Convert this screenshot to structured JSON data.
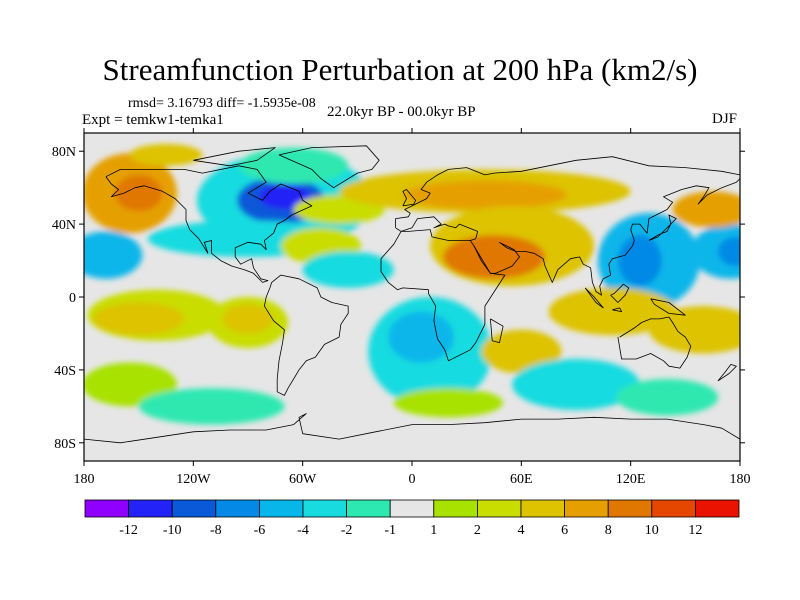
{
  "title": "Streamfunction Perturbation at 200 hPa (km2/s)",
  "stats_line": "rmsd= 3.16793 diff= -1.5935e-08",
  "experiment_label": "Expt = temkw1-temka1",
  "period_label": "22.0kyr BP - 00.0kyr BP",
  "season_label": "DJF",
  "axes": {
    "lat_ticks": [
      {
        "value": 80,
        "label": "80N"
      },
      {
        "value": 40,
        "label": "40N"
      },
      {
        "value": 0,
        "label": "0"
      },
      {
        "value": -40,
        "label": "40S"
      },
      {
        "value": -80,
        "label": "80S"
      }
    ],
    "lon_ticks": [
      {
        "value": -180,
        "label": "180"
      },
      {
        "value": -120,
        "label": "120W"
      },
      {
        "value": -60,
        "label": "60W"
      },
      {
        "value": 0,
        "label": "0"
      },
      {
        "value": 60,
        "label": "60E"
      },
      {
        "value": 120,
        "label": "120E"
      },
      {
        "value": 180,
        "label": "180"
      }
    ],
    "lat_range": [
      -90,
      90
    ],
    "lon_range": [
      -180,
      180
    ]
  },
  "colorbar": {
    "colors": [
      "#8f00ff",
      "#2323f7",
      "#0a59d9",
      "#0589e6",
      "#09b6ea",
      "#18dbe0",
      "#2de8b0",
      "#e6e6e6",
      "#a8e200",
      "#c9dd00",
      "#ddc300",
      "#e5a000",
      "#e07700",
      "#e54700",
      "#ea1200"
    ],
    "labels": [
      "-12",
      "-10",
      "-8",
      "-6",
      "-4",
      "-2",
      "-1",
      "1",
      "2",
      "4",
      "6",
      "8",
      "10",
      "12"
    ]
  },
  "field_blobs": [
    {
      "lon": -155,
      "lat": 57,
      "rlon": 26,
      "rlat": 22,
      "c": 11
    },
    {
      "lon": -150,
      "lat": 57,
      "rlon": 13,
      "rlat": 10,
      "c": 12
    },
    {
      "lon": -70,
      "lat": 53,
      "rlon": 48,
      "rlat": 26,
      "c": 5
    },
    {
      "lon": -72,
      "lat": 53,
      "rlon": 24,
      "rlat": 13,
      "c": 2
    },
    {
      "lon": -70,
      "lat": 55,
      "rlon": 14,
      "rlat": 7,
      "c": 1
    },
    {
      "lon": -168,
      "lat": 23,
      "rlon": 20,
      "rlat": 13,
      "c": 4
    },
    {
      "lon": -90,
      "lat": 32,
      "rlon": 55,
      "rlat": 10,
      "c": 5
    },
    {
      "lon": -50,
      "lat": 28,
      "rlon": 22,
      "rlat": 10,
      "c": 9
    },
    {
      "lon": -40,
      "lat": 48,
      "rlon": 25,
      "rlat": 8,
      "c": 9
    },
    {
      "lon": -140,
      "lat": -10,
      "rlon": 38,
      "rlat": 14,
      "c": 9
    },
    {
      "lon": -150,
      "lat": -12,
      "rlon": 25,
      "rlat": 9,
      "c": 10
    },
    {
      "lon": -90,
      "lat": -14,
      "rlon": 22,
      "rlat": 14,
      "c": 9
    },
    {
      "lon": -90,
      "lat": -12,
      "rlon": 14,
      "rlat": 8,
      "c": 10
    },
    {
      "lon": 10,
      "lat": -30,
      "rlon": 34,
      "rlat": 30,
      "c": 5
    },
    {
      "lon": 5,
      "lat": -22,
      "rlon": 18,
      "rlat": 14,
      "c": 4
    },
    {
      "lon": -35,
      "lat": 15,
      "rlon": 25,
      "rlat": 10,
      "c": 5
    },
    {
      "lon": 40,
      "lat": 58,
      "rlon": 80,
      "rlat": 12,
      "c": 10
    },
    {
      "lon": 40,
      "lat": 56,
      "rlon": 45,
      "rlat": 8,
      "c": 11
    },
    {
      "lon": 55,
      "lat": 28,
      "rlon": 45,
      "rlat": 22,
      "c": 10
    },
    {
      "lon": 45,
      "lat": 22,
      "rlon": 28,
      "rlat": 12,
      "c": 12
    },
    {
      "lon": 130,
      "lat": 20,
      "rlon": 28,
      "rlat": 26,
      "c": 4
    },
    {
      "lon": 125,
      "lat": 20,
      "rlon": 12,
      "rlat": 14,
      "c": 3
    },
    {
      "lon": 175,
      "lat": 25,
      "rlon": 22,
      "rlat": 15,
      "c": 4
    },
    {
      "lon": 178,
      "lat": 25,
      "rlon": 10,
      "rlat": 8,
      "c": 3
    },
    {
      "lon": 165,
      "lat": 48,
      "rlon": 22,
      "rlat": 10,
      "c": 11
    },
    {
      "lon": 110,
      "lat": -8,
      "rlon": 35,
      "rlat": 13,
      "c": 10
    },
    {
      "lon": 160,
      "lat": -18,
      "rlon": 30,
      "rlat": 13,
      "c": 10
    },
    {
      "lon": 60,
      "lat": -30,
      "rlon": 22,
      "rlat": 12,
      "c": 10
    },
    {
      "lon": 90,
      "lat": -48,
      "rlon": 35,
      "rlat": 14,
      "c": 5
    },
    {
      "lon": -155,
      "lat": -48,
      "rlon": 26,
      "rlat": 12,
      "c": 8
    },
    {
      "lon": -110,
      "lat": -60,
      "rlon": 40,
      "rlat": 10,
      "c": 6
    },
    {
      "lon": 140,
      "lat": -55,
      "rlon": 28,
      "rlat": 10,
      "c": 6
    },
    {
      "lon": 20,
      "lat": -58,
      "rlon": 30,
      "rlat": 8,
      "c": 8
    },
    {
      "lon": -65,
      "lat": 72,
      "rlon": 30,
      "rlat": 10,
      "c": 6
    },
    {
      "lon": -135,
      "lat": 78,
      "rlon": 20,
      "rlat": 6,
      "c": 10
    }
  ],
  "coastlines": [
    [
      [
        -168,
        66
      ],
      [
        -160,
        70
      ],
      [
        -140,
        70
      ],
      [
        -125,
        70
      ],
      [
        -115,
        68
      ],
      [
        -95,
        72
      ],
      [
        -85,
        70
      ],
      [
        -80,
        63
      ],
      [
        -90,
        57
      ],
      [
        -82,
        53
      ],
      [
        -78,
        58
      ],
      [
        -72,
        62
      ],
      [
        -62,
        58
      ],
      [
        -60,
        53
      ],
      [
        -55,
        50
      ],
      [
        -66,
        45
      ],
      [
        -70,
        42
      ],
      [
        -74,
        40
      ],
      [
        -76,
        35
      ],
      [
        -81,
        31
      ],
      [
        -80,
        26
      ],
      [
        -83,
        29
      ],
      [
        -90,
        30
      ],
      [
        -97,
        27
      ],
      [
        -97,
        22
      ],
      [
        -94,
        18
      ],
      [
        -88,
        21
      ],
      [
        -87,
        16
      ],
      [
        -83,
        10
      ],
      [
        -79,
        9
      ],
      [
        -82,
        8
      ],
      [
        -87,
        13
      ],
      [
        -92,
        15
      ],
      [
        -99,
        17
      ],
      [
        -105,
        20
      ],
      [
        -110,
        24
      ],
      [
        -110,
        31
      ],
      [
        -114,
        30
      ],
      [
        -112,
        24
      ],
      [
        -117,
        32
      ],
      [
        -122,
        37
      ],
      [
        -124,
        42
      ],
      [
        -124,
        48
      ],
      [
        -130,
        54
      ],
      [
        -137,
        58
      ],
      [
        -147,
        61
      ],
      [
        -152,
        60
      ],
      [
        -158,
        57
      ],
      [
        -165,
        55
      ],
      [
        -161,
        59
      ],
      [
        -165,
        62
      ],
      [
        -168,
        66
      ]
    ],
    [
      [
        -77,
        8
      ],
      [
        -72,
        12
      ],
      [
        -62,
        10
      ],
      [
        -52,
        5
      ],
      [
        -50,
        0
      ],
      [
        -44,
        -3
      ],
      [
        -35,
        -5
      ],
      [
        -35,
        -9
      ],
      [
        -39,
        -15
      ],
      [
        -40,
        -22
      ],
      [
        -48,
        -26
      ],
      [
        -53,
        -33
      ],
      [
        -58,
        -35
      ],
      [
        -62,
        -40
      ],
      [
        -65,
        -45
      ],
      [
        -68,
        -50
      ],
      [
        -70,
        -54
      ],
      [
        -74,
        -52
      ],
      [
        -74,
        -45
      ],
      [
        -73,
        -35
      ],
      [
        -71,
        -25
      ],
      [
        -70,
        -18
      ],
      [
        -76,
        -13
      ],
      [
        -81,
        -5
      ],
      [
        -80,
        0
      ],
      [
        -78,
        5
      ],
      [
        -77,
        8
      ]
    ],
    [
      [
        -73,
        78
      ],
      [
        -55,
        82
      ],
      [
        -25,
        83
      ],
      [
        -18,
        75
      ],
      [
        -22,
        70
      ],
      [
        -30,
        68
      ],
      [
        -43,
        60
      ],
      [
        -50,
        65
      ],
      [
        -55,
        70
      ],
      [
        -73,
        78
      ]
    ],
    [
      [
        -17,
        21
      ],
      [
        -10,
        29
      ],
      [
        -6,
        36
      ],
      [
        -2,
        36
      ],
      [
        10,
        37
      ],
      [
        11,
        33
      ],
      [
        20,
        31
      ],
      [
        32,
        31
      ],
      [
        34,
        28
      ],
      [
        43,
        13
      ],
      [
        51,
        12
      ],
      [
        40,
        -5
      ],
      [
        40,
        -15
      ],
      [
        35,
        -25
      ],
      [
        32,
        -29
      ],
      [
        20,
        -35
      ],
      [
        18,
        -29
      ],
      [
        14,
        -23
      ],
      [
        12,
        -13
      ],
      [
        13,
        -5
      ],
      [
        9,
        2
      ],
      [
        9,
        4
      ],
      [
        -5,
        5
      ],
      [
        -8,
        4
      ],
      [
        -13,
        8
      ],
      [
        -17,
        14
      ],
      [
        -17,
        21
      ]
    ],
    [
      [
        -9,
        38
      ],
      [
        -9,
        43
      ],
      [
        -2,
        44
      ],
      [
        -1,
        46
      ],
      [
        -4,
        48
      ],
      [
        2,
        51
      ],
      [
        8,
        54
      ],
      [
        10,
        57
      ],
      [
        5,
        59
      ],
      [
        8,
        63
      ],
      [
        14,
        67
      ],
      [
        20,
        70
      ],
      [
        30,
        71
      ],
      [
        40,
        67
      ],
      [
        45,
        68
      ],
      [
        60,
        69
      ],
      [
        75,
        72
      ],
      [
        90,
        75
      ],
      [
        110,
        77
      ],
      [
        130,
        72
      ],
      [
        150,
        71
      ],
      [
        170,
        69
      ],
      [
        180,
        67
      ]
    ],
    [
      [
        -9,
        38
      ],
      [
        -6,
        36
      ],
      [
        0,
        38
      ],
      [
        3,
        43
      ],
      [
        12,
        44
      ],
      [
        16,
        40
      ],
      [
        12,
        38
      ],
      [
        18,
        40
      ],
      [
        20,
        39
      ],
      [
        24,
        38
      ],
      [
        26,
        40
      ],
      [
        36,
        36
      ],
      [
        35,
        32
      ],
      [
        32,
        31
      ]
    ],
    [
      [
        34,
        28
      ],
      [
        38,
        20
      ],
      [
        43,
        13
      ],
      [
        46,
        13
      ],
      [
        55,
        17
      ],
      [
        59,
        22
      ],
      [
        56,
        26
      ],
      [
        50,
        29
      ],
      [
        48,
        30
      ],
      [
        52,
        27
      ],
      [
        57,
        25
      ],
      [
        62,
        25
      ],
      [
        67,
        24
      ],
      [
        72,
        21
      ],
      [
        73,
        17
      ],
      [
        77,
        8
      ],
      [
        80,
        15
      ],
      [
        87,
        21
      ],
      [
        92,
        22
      ],
      [
        94,
        18
      ],
      [
        98,
        16
      ],
      [
        99,
        8
      ],
      [
        101,
        3
      ],
      [
        104,
        1
      ],
      [
        103,
        6
      ],
      [
        105,
        10
      ],
      [
        109,
        12
      ],
      [
        108,
        18
      ],
      [
        110,
        21
      ],
      [
        117,
        23
      ],
      [
        121,
        28
      ],
      [
        122,
        31
      ],
      [
        120,
        37
      ],
      [
        121,
        40
      ],
      [
        125,
        40
      ],
      [
        129,
        35
      ],
      [
        130,
        43
      ],
      [
        140,
        48
      ],
      [
        143,
        52
      ],
      [
        138,
        55
      ],
      [
        148,
        59
      ],
      [
        156,
        61
      ],
      [
        163,
        60
      ],
      [
        160,
        55
      ],
      [
        157,
        51
      ],
      [
        162,
        56
      ],
      [
        170,
        60
      ],
      [
        178,
        63
      ],
      [
        180,
        65
      ]
    ],
    [
      [
        113,
        -22
      ],
      [
        115,
        -34
      ],
      [
        123,
        -34
      ],
      [
        131,
        -31
      ],
      [
        138,
        -35
      ],
      [
        141,
        -38
      ],
      [
        147,
        -39
      ],
      [
        151,
        -33
      ],
      [
        153,
        -27
      ],
      [
        150,
        -22
      ],
      [
        146,
        -19
      ],
      [
        143,
        -14
      ],
      [
        141,
        -11
      ],
      [
        136,
        -12
      ],
      [
        131,
        -12
      ],
      [
        126,
        -14
      ],
      [
        122,
        -17
      ],
      [
        114,
        -22
      ]
    ],
    [
      [
        -180,
        -78
      ],
      [
        -160,
        -80
      ],
      [
        -140,
        -77
      ],
      [
        -120,
        -74
      ],
      [
        -100,
        -73
      ],
      [
        -80,
        -73
      ],
      [
        -65,
        -70
      ],
      [
        -58,
        -64
      ],
      [
        -62,
        -66
      ],
      [
        -60,
        -75
      ],
      [
        -40,
        -78
      ],
      [
        -20,
        -74
      ],
      [
        0,
        -70
      ],
      [
        20,
        -70
      ],
      [
        40,
        -69
      ],
      [
        60,
        -67
      ],
      [
        80,
        -67
      ],
      [
        100,
        -66
      ],
      [
        120,
        -67
      ],
      [
        140,
        -67
      ],
      [
        160,
        -70
      ],
      [
        170,
        -72
      ],
      [
        180,
        -78
      ]
    ],
    [
      [
        -5,
        50
      ],
      [
        -3,
        54
      ],
      [
        -5,
        58
      ],
      [
        -3,
        59
      ],
      [
        2,
        53
      ],
      [
        1,
        51
      ],
      [
        -5,
        50
      ]
    ],
    [
      [
        130,
        31
      ],
      [
        135,
        34
      ],
      [
        140,
        36
      ],
      [
        142,
        40
      ],
      [
        141,
        45
      ],
      [
        145,
        43
      ],
      [
        140,
        38
      ],
      [
        135,
        33
      ],
      [
        130,
        31
      ]
    ],
    [
      [
        95,
        5
      ],
      [
        100,
        0
      ],
      [
        105,
        -6
      ],
      [
        101,
        -3
      ],
      [
        95,
        5
      ]
    ],
    [
      [
        110,
        -7
      ],
      [
        115,
        -8
      ],
      [
        114,
        -6
      ],
      [
        110,
        -7
      ]
    ],
    [
      [
        109,
        1
      ],
      [
        113,
        -3
      ],
      [
        117,
        1
      ],
      [
        119,
        5
      ],
      [
        116,
        7
      ],
      [
        111,
        2
      ],
      [
        109,
        1
      ]
    ],
    [
      [
        131,
        -1
      ],
      [
        141,
        -3
      ],
      [
        150,
        -10
      ],
      [
        141,
        -9
      ],
      [
        133,
        -4
      ],
      [
        131,
        -1
      ]
    ],
    [
      [
        43,
        -12
      ],
      [
        50,
        -16
      ],
      [
        48,
        -25
      ],
      [
        44,
        -24
      ],
      [
        43,
        -12
      ]
    ],
    [
      [
        -120,
        75
      ],
      [
        -95,
        80
      ],
      [
        -75,
        82
      ],
      [
        -85,
        75
      ],
      [
        -100,
        72
      ],
      [
        -120,
        75
      ]
    ],
    [
      [
        172,
        -41
      ],
      [
        175,
        -37
      ],
      [
        178,
        -38
      ],
      [
        174,
        -42
      ],
      [
        168,
        -46
      ],
      [
        172,
        -41
      ]
    ]
  ]
}
